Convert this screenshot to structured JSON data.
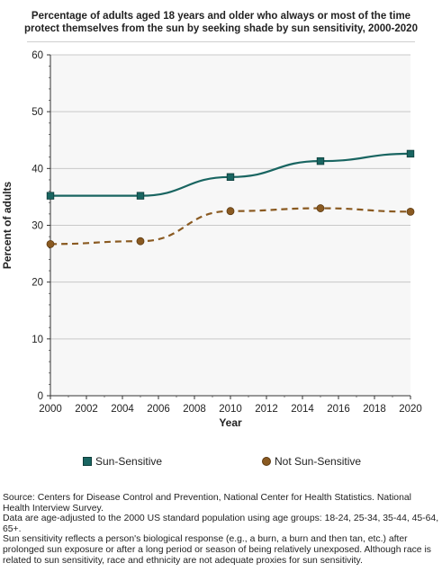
{
  "title_lines": [
    "Percentage of adults aged 18 years and older who always or most of the time",
    "protect themselves from the sun by seeking shade by sun sensitivity, 2000-2020"
  ],
  "colors": {
    "sun_sensitive": "#196561",
    "not_sun_sensitive": "#8a5a21",
    "plot_background": "#f7f7f7",
    "grid": "#c8c8c8"
  },
  "chart_data": {
    "type": "line",
    "xlabel": "Year",
    "ylabel": "Percent of adults",
    "xlim": [
      2000,
      2020
    ],
    "ylim": [
      0,
      60
    ],
    "x_ticks": [
      "2000",
      "2002",
      "2004",
      "2006",
      "2008",
      "2010",
      "2012",
      "2014",
      "2016",
      "2018",
      "2020"
    ],
    "y_ticks": [
      "0",
      "10",
      "20",
      "30",
      "40",
      "50",
      "60"
    ],
    "grid": true,
    "legend_position": "bottom",
    "series": [
      {
        "name": "Sun-Sensitive",
        "marker": "square",
        "line_style": "solid",
        "x": [
          2000,
          2005,
          2010,
          2015,
          2020
        ],
        "values": [
          35.2,
          35.2,
          38.5,
          41.3,
          42.6
        ]
      },
      {
        "name": "Not Sun-Sensitive",
        "marker": "circle",
        "line_style": "dashed",
        "x": [
          2000,
          2005,
          2010,
          2015,
          2020
        ],
        "values": [
          26.7,
          27.2,
          32.5,
          33.0,
          32.4
        ]
      }
    ]
  },
  "footnotes": [
    "Source: Centers for Disease Control and Prevention, National Center for Health Statistics. National Health Interview Survey.",
    "Data are age-adjusted to the 2000 US standard population using age groups: 18-24, 25-34, 35-44, 45-64, 65+.",
    "Sun sensitivity reflects a person's biological response (e.g., a burn, a burn and then tan, etc.) after prolonged sun exposure or after a long period or season of being relatively unexposed. Although race is related to sun sensitivity, race and ethnicity are not adequate proxies for sun sensitivity."
  ]
}
